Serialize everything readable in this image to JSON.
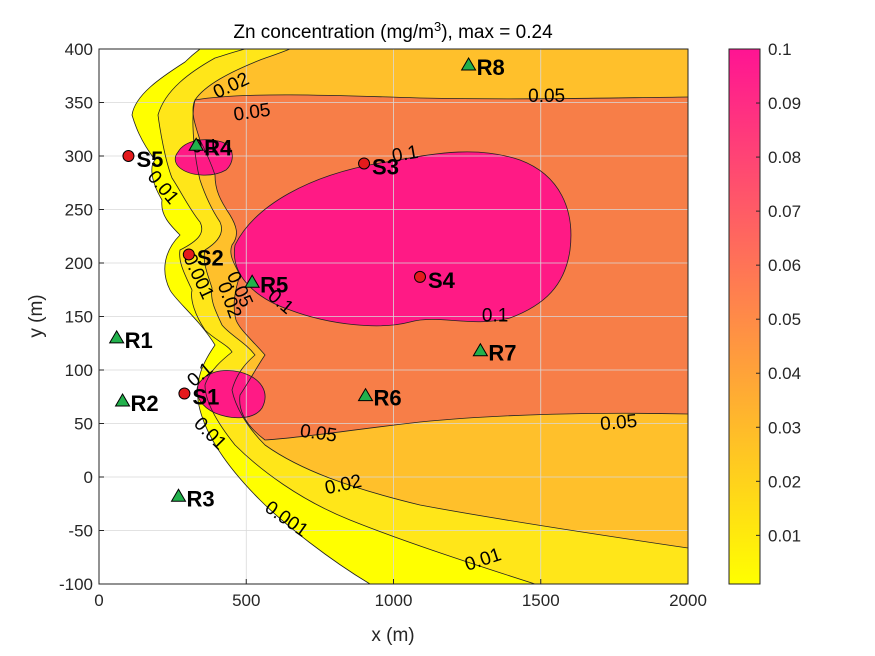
{
  "chart_data": {
    "type": "contour",
    "title": "Zn concentration (mg/m",
    "title_sup": "3",
    "title_tail": "), max =  0.24",
    "xlabel": "x (m)",
    "ylabel": "y (m)",
    "xlim": [
      0,
      2000
    ],
    "ylim": [
      -100,
      400
    ],
    "xticks": [
      0,
      500,
      1000,
      1500,
      2000
    ],
    "yticks": [
      -100,
      -50,
      0,
      50,
      100,
      150,
      200,
      250,
      300,
      350,
      400
    ],
    "grid": true,
    "levels": [
      0.001,
      0.01,
      0.02,
      0.05,
      0.1
    ],
    "colorbar": {
      "min": 0.001,
      "max": 0.1,
      "ticks": [
        0.01,
        0.02,
        0.03,
        0.04,
        0.05,
        0.06,
        0.07,
        0.08,
        0.09,
        0.1
      ],
      "tick_labels": [
        "0.01",
        "0.02",
        "0.03",
        "0.04",
        "0.05",
        "0.06",
        "0.07",
        "0.08",
        "0.09",
        "0.1"
      ],
      "color_low": "#ffff00",
      "color_high": "#ff1493"
    },
    "fill_colors": {
      "below_0.001": "#ffffff",
      "0.001_0.01": "#ffff00",
      "0.01_0.02": "#ffe619",
      "0.02_0.05": "#ffc02b",
      "0.05_0.1": "#f77e48",
      "above_0.1": "#ff1a85"
    },
    "contour_labels": [
      {
        "text": "0.02",
        "x": 450,
        "y": 365,
        "rot": -25
      },
      {
        "text": "0.05",
        "x": 520,
        "y": 340,
        "rot": -8
      },
      {
        "text": "0.05",
        "x": 1520,
        "y": 355,
        "rot": 0
      },
      {
        "text": "0.1",
        "x": 360,
        "y": 308,
        "rot": 0
      },
      {
        "text": "0.1",
        "x": 1040,
        "y": 301,
        "rot": -10
      },
      {
        "text": "0.01",
        "x": 215,
        "y": 270,
        "rot": 50
      },
      {
        "text": "0.001",
        "x": 335,
        "y": 187,
        "rot": 65
      },
      {
        "text": "0.02",
        "x": 440,
        "y": 165,
        "rot": 70
      },
      {
        "text": "0.05",
        "x": 475,
        "y": 175,
        "rot": 65
      },
      {
        "text": "0.1",
        "x": 615,
        "y": 163,
        "rot": 40
      },
      {
        "text": "0.1",
        "x": 1345,
        "y": 150,
        "rot": 0
      },
      {
        "text": "0.1",
        "x": 345,
        "y": 95,
        "rot": -40
      },
      {
        "text": "0.01",
        "x": 375,
        "y": 40,
        "rot": 45
      },
      {
        "text": "0.05",
        "x": 745,
        "y": 40,
        "rot": 8
      },
      {
        "text": "0.05",
        "x": 1765,
        "y": 50,
        "rot": -5
      },
      {
        "text": "0.02",
        "x": 830,
        "y": -8,
        "rot": -12
      },
      {
        "text": "0.001",
        "x": 635,
        "y": -40,
        "rot": 35
      },
      {
        "text": "0.01",
        "x": 1305,
        "y": -78,
        "rot": -18
      }
    ],
    "sources": [
      {
        "name": "S1",
        "x": 290,
        "y": 78
      },
      {
        "name": "S2",
        "x": 305,
        "y": 208
      },
      {
        "name": "S3",
        "x": 900,
        "y": 293
      },
      {
        "name": "S4",
        "x": 1090,
        "y": 187
      },
      {
        "name": "S5",
        "x": 100,
        "y": 300
      }
    ],
    "receptors": [
      {
        "name": "R1",
        "x": 60,
        "y": 130
      },
      {
        "name": "R2",
        "x": 80,
        "y": 71
      },
      {
        "name": "R3",
        "x": 270,
        "y": -18
      },
      {
        "name": "R4",
        "x": 330,
        "y": 310
      },
      {
        "name": "R5",
        "x": 520,
        "y": 182
      },
      {
        "name": "R6",
        "x": 905,
        "y": 76
      },
      {
        "name": "R7",
        "x": 1295,
        "y": 118
      },
      {
        "name": "R8",
        "x": 1255,
        "y": 385
      }
    ],
    "source_color": "#e41a1c",
    "receptor_color": "#22b14c"
  }
}
